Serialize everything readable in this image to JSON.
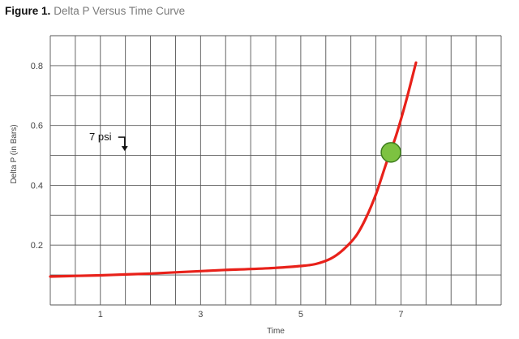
{
  "figure": {
    "number": "Figure 1.",
    "title": "Delta P Versus Time Curve"
  },
  "colors": {
    "curve": "#e8211a",
    "marker_fill": "#7dc241",
    "marker_stroke": "#3d7d1c",
    "grid": "#555555",
    "axis_text": "#444444"
  },
  "chart_data": {
    "type": "line",
    "title": "Delta P Versus Time Curve",
    "xlabel": "Time",
    "ylabel": "Delta P (in Bars)",
    "xlim": [
      0,
      9
    ],
    "ylim": [
      0,
      0.9
    ],
    "x_ticks": [
      1,
      3,
      5,
      7
    ],
    "y_ticks": [
      0.2,
      0.4,
      0.6,
      0.8
    ],
    "grid": true,
    "series": [
      {
        "points": [
          [
            0,
            0.095
          ],
          [
            0.5,
            0.097
          ],
          [
            1,
            0.099
          ],
          [
            1.5,
            0.102
          ],
          [
            2,
            0.105
          ],
          [
            2.5,
            0.109
          ],
          [
            3,
            0.113
          ],
          [
            3.5,
            0.117
          ],
          [
            4,
            0.12
          ],
          [
            4.5,
            0.124
          ],
          [
            5,
            0.13
          ],
          [
            5.3,
            0.137
          ],
          [
            5.6,
            0.155
          ],
          [
            5.85,
            0.185
          ],
          [
            6.1,
            0.23
          ],
          [
            6.3,
            0.29
          ],
          [
            6.5,
            0.37
          ],
          [
            6.7,
            0.47
          ],
          [
            6.9,
            0.565
          ],
          [
            7.1,
            0.68
          ],
          [
            7.3,
            0.81
          ]
        ]
      }
    ],
    "marker": {
      "x": 6.8,
      "y": 0.51
    },
    "annotation": {
      "text": "7 psi",
      "x": 1.0,
      "y": 0.55
    }
  }
}
